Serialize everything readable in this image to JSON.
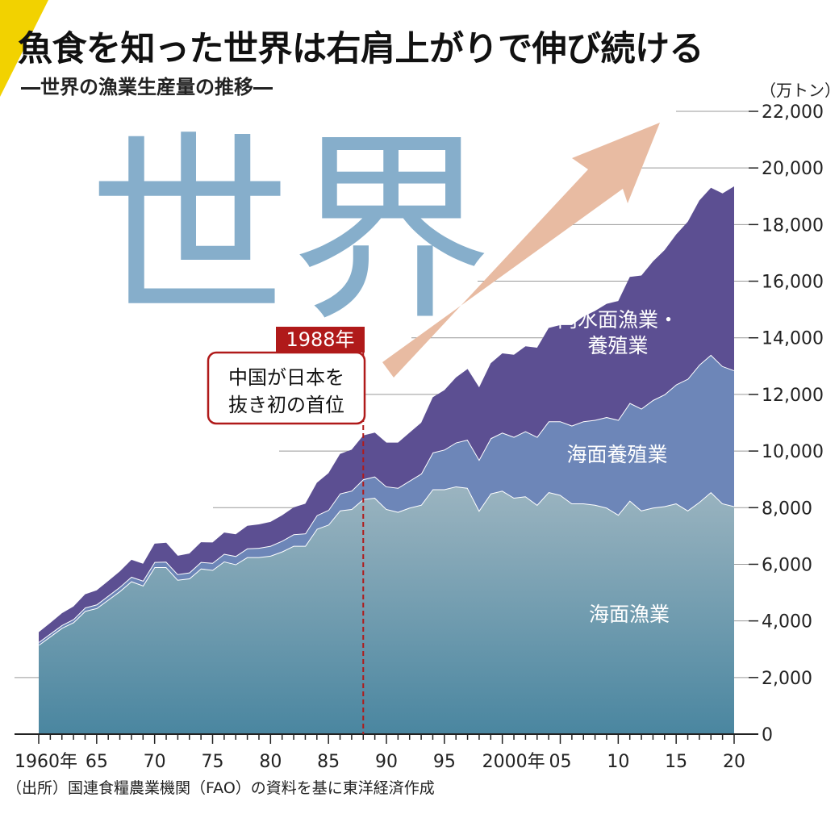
{
  "title": "魚食を知った世界は右肩上がりで伸び続ける",
  "subtitle": "―世界の漁業生産量の推移―",
  "source": "（出所）国連食糧農業機関（FAO）の資料を基に東洋経済作成",
  "watermark": "世界",
  "annotation": {
    "year_tag": "1988年",
    "lines": [
      "中国が日本を",
      "抜き初の首位"
    ],
    "year": 1988
  },
  "colors": {
    "marine_fishing_top": "#9bb4c0",
    "marine_fishing_bottom": "#4a86a0",
    "marine_aquaculture": "#6d86b8",
    "inland": "#5c4f92",
    "arrow": "#e8bba2",
    "watermark": "#86aecb",
    "annotation_red": "#b01a1a",
    "grid": "#999999",
    "corner": "#f2d200"
  },
  "chart_data": {
    "type": "area",
    "stacked": true,
    "title": "世界の漁業生産量の推移",
    "ylabel": "（万トン）",
    "unit": "（万トン）",
    "ylim": [
      0,
      22000
    ],
    "yticks": [
      0,
      2000,
      4000,
      6000,
      8000,
      10000,
      12000,
      14000,
      16000,
      18000,
      20000,
      22000
    ],
    "ytick_labels": [
      "0",
      "2,000",
      "4,000",
      "6,000",
      "8,000",
      "10,000",
      "12,000",
      "14,000",
      "16,000",
      "18,000",
      "20,000",
      "22,000"
    ],
    "xlim": [
      1960,
      2020
    ],
    "xticks": [
      1960,
      1965,
      1970,
      1975,
      1980,
      1985,
      1990,
      1995,
      2000,
      2005,
      2010,
      2015,
      2020
    ],
    "xtick_labels": [
      "1960年",
      "65",
      "70",
      "75",
      "80",
      "85",
      "90",
      "95",
      "2000年",
      "05",
      "10",
      "15",
      "20"
    ],
    "x": [
      1960,
      1961,
      1962,
      1963,
      1964,
      1965,
      1966,
      1967,
      1968,
      1969,
      1970,
      1971,
      1972,
      1973,
      1974,
      1975,
      1976,
      1977,
      1978,
      1979,
      1980,
      1981,
      1982,
      1983,
      1984,
      1985,
      1986,
      1987,
      1988,
      1989,
      1990,
      1991,
      1992,
      1993,
      1994,
      1995,
      1996,
      1997,
      1998,
      1999,
      2000,
      2001,
      2002,
      2003,
      2004,
      2005,
      2006,
      2007,
      2008,
      2009,
      2010,
      2011,
      2012,
      2013,
      2014,
      2015,
      2016,
      2017,
      2018,
      2019,
      2020
    ],
    "series": [
      {
        "name": "海面漁業",
        "values": [
          3150,
          3450,
          3750,
          3950,
          4350,
          4450,
          4750,
          5050,
          5400,
          5250,
          5900,
          5900,
          5450,
          5500,
          5850,
          5800,
          6100,
          6000,
          6250,
          6250,
          6300,
          6450,
          6650,
          6650,
          7250,
          7400,
          7900,
          7950,
          8300,
          8350,
          7950,
          7850,
          8000,
          8100,
          8650,
          8650,
          8750,
          8700,
          7900,
          8500,
          8600,
          8350,
          8400,
          8100,
          8550,
          8450,
          8150,
          8150,
          8100,
          8000,
          7750,
          8250,
          7900,
          8000,
          8050,
          8150,
          7900,
          8200,
          8550,
          8150,
          8050
        ]
      },
      {
        "name": "海面養殖業",
        "values": [
          100,
          100,
          100,
          110,
          120,
          130,
          140,
          150,
          160,
          170,
          180,
          190,
          200,
          210,
          230,
          250,
          270,
          290,
          310,
          330,
          350,
          380,
          410,
          440,
          480,
          520,
          600,
          650,
          700,
          750,
          800,
          850,
          950,
          1100,
          1300,
          1400,
          1550,
          1700,
          1800,
          1950,
          2050,
          2150,
          2300,
          2400,
          2500,
          2600,
          2750,
          2900,
          3000,
          3200,
          3350,
          3450,
          3600,
          3800,
          3950,
          4200,
          4650,
          4850,
          4850,
          4850,
          4800
        ]
      },
      {
        "name": "内水面漁業・養殖業",
        "values": [
          350,
          380,
          420,
          450,
          470,
          500,
          520,
          550,
          600,
          600,
          650,
          670,
          650,
          670,
          700,
          720,
          750,
          770,
          800,
          830,
          850,
          900,
          950,
          1050,
          1150,
          1300,
          1400,
          1450,
          1550,
          1550,
          1550,
          1600,
          1700,
          1800,
          1950,
          2100,
          2300,
          2500,
          2550,
          2650,
          2800,
          2900,
          3000,
          3150,
          3300,
          3400,
          3550,
          3700,
          3850,
          4000,
          4200,
          4450,
          4700,
          4900,
          5100,
          5300,
          5550,
          5800,
          5900,
          6100,
          6500
        ]
      }
    ],
    "series_labels": [
      "海面漁業",
      "海面養殖業",
      "内水面漁業・\n養殖業"
    ]
  }
}
